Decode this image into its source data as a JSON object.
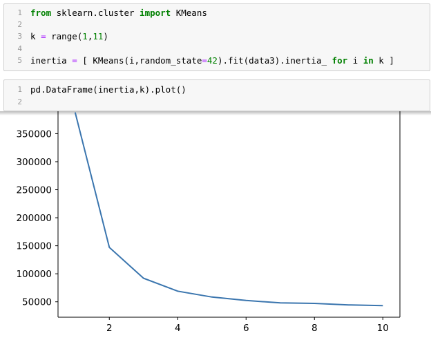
{
  "cells": [
    {
      "lines": [
        {
          "num": "1",
          "tokens": [
            {
              "t": "from",
              "c": "kw"
            },
            {
              "t": " sklearn.cluster ",
              "c": ""
            },
            {
              "t": "import",
              "c": "kw"
            },
            {
              "t": " KMeans",
              "c": ""
            }
          ]
        },
        {
          "num": "2",
          "tokens": []
        },
        {
          "num": "3",
          "tokens": [
            {
              "t": "k ",
              "c": ""
            },
            {
              "t": "=",
              "c": "op"
            },
            {
              "t": " range(",
              "c": ""
            },
            {
              "t": "1",
              "c": "num"
            },
            {
              "t": ",",
              "c": ""
            },
            {
              "t": "11",
              "c": "num"
            },
            {
              "t": ")",
              "c": ""
            }
          ]
        },
        {
          "num": "4",
          "tokens": []
        },
        {
          "num": "5",
          "tokens": [
            {
              "t": "inertia ",
              "c": ""
            },
            {
              "t": "=",
              "c": "op"
            },
            {
              "t": " [ KMeans(i,random_state",
              "c": ""
            },
            {
              "t": "=",
              "c": "op"
            },
            {
              "t": "42",
              "c": "num"
            },
            {
              "t": ").fit(data3).inertia_ ",
              "c": ""
            },
            {
              "t": "for",
              "c": "kw"
            },
            {
              "t": " i ",
              "c": ""
            },
            {
              "t": "in",
              "c": "kw"
            },
            {
              "t": " k ]",
              "c": ""
            }
          ]
        }
      ]
    },
    {
      "lines": [
        {
          "num": "1",
          "tokens": [
            {
              "t": "pd.DataFrame(inertia,k).plot()",
              "c": ""
            }
          ]
        },
        {
          "num": "2",
          "tokens": []
        }
      ]
    }
  ],
  "chart_data": {
    "type": "line",
    "x": [
      1,
      2,
      3,
      4,
      5,
      6,
      7,
      8,
      9,
      10
    ],
    "y": [
      388000,
      147000,
      92000,
      69000,
      58500,
      52500,
      48000,
      47200,
      44500,
      43200
    ],
    "xticks": [
      "2",
      "4",
      "6",
      "8",
      "10"
    ],
    "yticks": [
      "50000",
      "100000",
      "150000",
      "200000",
      "250000",
      "300000",
      "350000"
    ],
    "xlim": [
      0.5,
      10.5
    ],
    "ylim": [
      22500,
      390000
    ],
    "line_color": "#3a75ae"
  }
}
